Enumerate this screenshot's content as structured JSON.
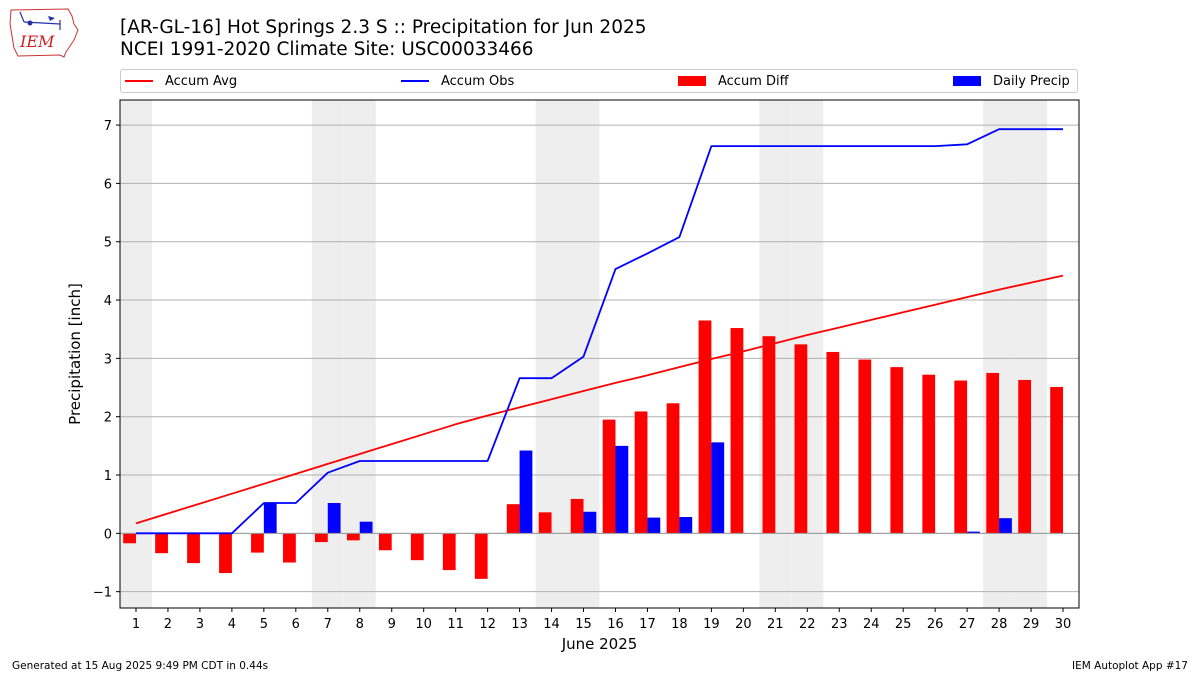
{
  "header": {
    "logo_text": "IEM",
    "title_line1": "[AR-GL-16] Hot Springs 2.3 S :: Precipitation for Jun 2025",
    "title_line2": "NCEI 1991-2020 Climate Site: USC00033466"
  },
  "legend": {
    "items": [
      {
        "label": "Accum Avg",
        "kind": "line",
        "color": "#ff0000"
      },
      {
        "label": "Accum Obs",
        "kind": "line",
        "color": "#0000ff"
      },
      {
        "label": "Accum Diff",
        "kind": "box",
        "color": "#ff0000"
      },
      {
        "label": "Daily Precip",
        "kind": "box",
        "color": "#0000ff"
      }
    ]
  },
  "chart_data": {
    "type": "bar",
    "xlabel": "June 2025",
    "ylabel": "Precipitation [inch]",
    "ylim": [
      -1.28,
      7.43
    ],
    "yticks": [
      -1,
      0,
      1,
      2,
      3,
      4,
      5,
      6,
      7
    ],
    "grid": "horizontal",
    "legend_placement": "top",
    "weekend_shading_days": [
      1,
      7,
      8,
      14,
      15,
      21,
      22,
      28,
      29
    ],
    "days": [
      1,
      2,
      3,
      4,
      5,
      6,
      7,
      8,
      9,
      10,
      11,
      12,
      13,
      14,
      15,
      16,
      17,
      18,
      19,
      20,
      21,
      22,
      23,
      24,
      25,
      26,
      27,
      28,
      29,
      30
    ],
    "series": [
      {
        "name": "Accum Avg",
        "kind": "line",
        "color": "#ff0000",
        "values": [
          0.17,
          0.34,
          0.51,
          0.68,
          0.85,
          1.02,
          1.19,
          1.36,
          1.53,
          1.7,
          1.87,
          2.02,
          2.16,
          2.3,
          2.44,
          2.58,
          2.71,
          2.85,
          2.99,
          3.12,
          3.26,
          3.4,
          3.53,
          3.66,
          3.79,
          3.92,
          4.05,
          4.18,
          4.3,
          4.42
        ]
      },
      {
        "name": "Accum Obs",
        "kind": "line",
        "color": "#0000ff",
        "values": [
          0.0,
          0.0,
          0.0,
          0.0,
          0.52,
          0.52,
          1.04,
          1.24,
          1.24,
          1.24,
          1.24,
          1.24,
          2.66,
          2.66,
          3.03,
          4.53,
          4.8,
          5.08,
          6.64,
          6.64,
          6.64,
          6.64,
          6.64,
          6.64,
          6.64,
          6.64,
          6.67,
          6.93,
          6.93,
          6.93
        ]
      },
      {
        "name": "Accum Diff",
        "kind": "bar",
        "color": "#ff0000",
        "values": [
          -0.17,
          -0.34,
          -0.51,
          -0.68,
          -0.33,
          -0.5,
          -0.15,
          -0.12,
          -0.29,
          -0.46,
          -0.63,
          -0.78,
          0.5,
          0.36,
          0.59,
          1.95,
          2.09,
          2.23,
          3.65,
          3.52,
          3.38,
          3.24,
          3.11,
          2.98,
          2.85,
          2.72,
          2.62,
          2.75,
          2.63,
          2.51
        ]
      },
      {
        "name": "Daily Precip",
        "kind": "bar",
        "color": "#0000ff",
        "values": [
          0,
          0,
          0,
          0,
          0.52,
          0,
          0.52,
          0.2,
          0,
          0,
          0,
          0,
          1.42,
          0,
          0.37,
          1.5,
          0.27,
          0.28,
          1.56,
          0,
          0,
          0,
          0,
          0,
          0,
          0,
          0.03,
          0.26,
          0,
          0
        ]
      }
    ]
  },
  "footer": {
    "left": "Generated at 15 Aug 2025 9:49 PM CDT in 0.44s",
    "right": "IEM Autoplot App #17"
  }
}
